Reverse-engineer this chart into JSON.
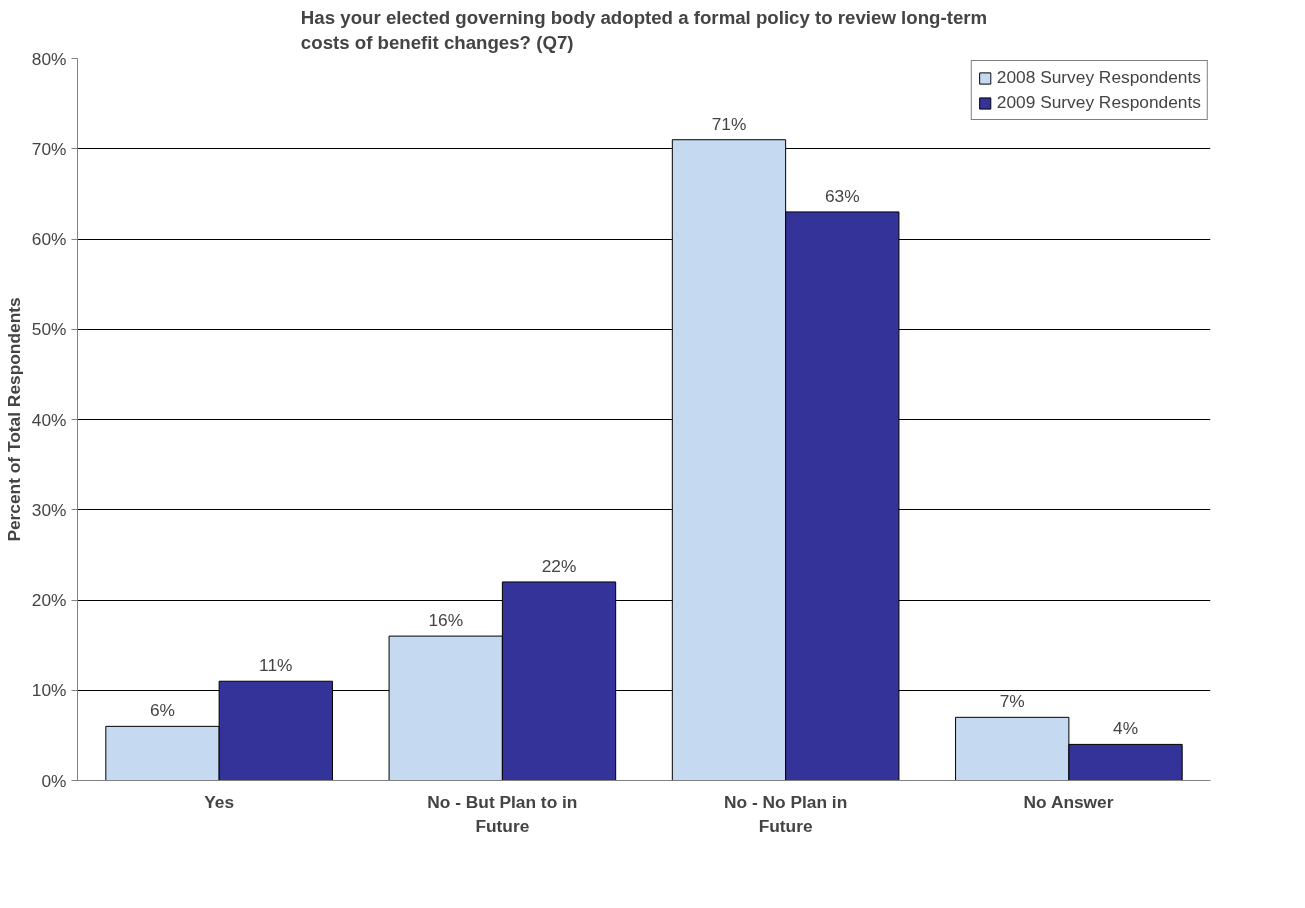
{
  "chart_data": {
    "type": "bar",
    "title": "Has your elected governing body adopted a formal policy to review long-term costs of benefit changes? (Q7)",
    "ylabel": "Percent of Total Respondents",
    "categories": [
      "Yes",
      "No - But Plan to in Future",
      "No - No Plan in Future",
      "No Answer"
    ],
    "series": [
      {
        "name": "2008 Survey Respondents",
        "color": "#c5d9f1",
        "values": [
          6,
          16,
          71,
          7
        ],
        "value_labels": [
          "6%",
          "16%",
          "71%",
          "7%"
        ]
      },
      {
        "name": "2009 Survey Respondents",
        "color": "#333399",
        "values": [
          11,
          22,
          63,
          4
        ],
        "value_labels": [
          "11%",
          "22%",
          "63%",
          "4%"
        ]
      }
    ],
    "ylim": [
      0,
      80
    ],
    "yticks": [
      {
        "value": 0,
        "label": "0%"
      },
      {
        "value": 10,
        "label": "10%"
      },
      {
        "value": 20,
        "label": "20%"
      },
      {
        "value": 30,
        "label": "30%"
      },
      {
        "value": 40,
        "label": "40%"
      },
      {
        "value": 50,
        "label": "50%"
      },
      {
        "value": 60,
        "label": "60%"
      },
      {
        "value": 70,
        "label": "70%"
      },
      {
        "value": 80,
        "label": "80%"
      }
    ],
    "grid": "y",
    "legend": "top right"
  }
}
